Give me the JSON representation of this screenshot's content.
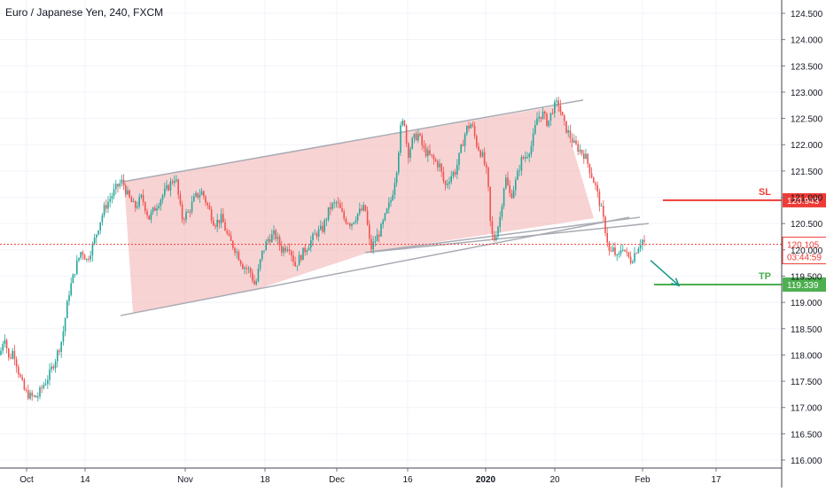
{
  "chart_title": "Euro / Japanese Yen, 240, FXCM",
  "colors": {
    "up": "#26a69a",
    "down": "#ef5350",
    "channel_fill": "#f4b6b6",
    "channel_line": "#a8abb3",
    "sl": "#ef3b36",
    "tp": "#4caf50",
    "arrow": "#1e9a8c",
    "price_line": "#ef3b36"
  },
  "chart_data": {
    "type": "candlestick",
    "title": "Euro / Japanese Yen, 240, FXCM",
    "ylim": [
      115.9,
      124.7
    ],
    "x_ticks": [
      "Oct",
      "14",
      "Nov",
      "18",
      "Dec",
      "16",
      "2020",
      "20",
      "Feb",
      "17"
    ],
    "y_ticks": [
      "124.500",
      "124.000",
      "123.500",
      "123.000",
      "122.500",
      "122.000",
      "121.500",
      "121.000",
      "120.500",
      "120.000",
      "119.500",
      "119.000",
      "118.500",
      "118.000",
      "117.500",
      "117.000",
      "116.500",
      "116.000"
    ],
    "price_path": [
      [
        0,
        118.0
      ],
      [
        5,
        118.4
      ],
      [
        10,
        117.9
      ],
      [
        15,
        118.1
      ],
      [
        22,
        117.6
      ],
      [
        28,
        117.3
      ],
      [
        35,
        117.2
      ],
      [
        42,
        117.2
      ],
      [
        48,
        117.4
      ],
      [
        55,
        117.6
      ],
      [
        62,
        117.9
      ],
      [
        70,
        118.3
      ],
      [
        78,
        119.2
      ],
      [
        86,
        119.7
      ],
      [
        92,
        120.0
      ],
      [
        98,
        119.8
      ],
      [
        105,
        120.1
      ],
      [
        112,
        120.5
      ],
      [
        118,
        120.8
      ],
      [
        125,
        121.0
      ],
      [
        132,
        121.2
      ],
      [
        138,
        121.3
      ],
      [
        145,
        121.0
      ],
      [
        152,
        120.8
      ],
      [
        160,
        121.0
      ],
      [
        168,
        120.6
      ],
      [
        175,
        120.8
      ],
      [
        182,
        121.0
      ],
      [
        190,
        121.2
      ],
      [
        198,
        121.4
      ],
      [
        205,
        120.6
      ],
      [
        212,
        120.7
      ],
      [
        220,
        121.0
      ],
      [
        228,
        121.1
      ],
      [
        235,
        120.8
      ],
      [
        242,
        120.5
      ],
      [
        250,
        120.6
      ],
      [
        258,
        120.2
      ],
      [
        266,
        120.0
      ],
      [
        274,
        119.7
      ],
      [
        282,
        119.6
      ],
      [
        288,
        119.3
      ],
      [
        295,
        119.9
      ],
      [
        302,
        120.2
      ],
      [
        310,
        120.3
      ],
      [
        318,
        120.0
      ],
      [
        326,
        120.1
      ],
      [
        333,
        119.7
      ],
      [
        340,
        119.9
      ],
      [
        348,
        120.1
      ],
      [
        356,
        120.3
      ],
      [
        364,
        120.4
      ],
      [
        372,
        120.8
      ],
      [
        380,
        120.9
      ],
      [
        388,
        120.6
      ],
      [
        396,
        120.5
      ],
      [
        404,
        120.7
      ],
      [
        412,
        120.8
      ],
      [
        418,
        120.0
      ],
      [
        424,
        120.2
      ],
      [
        430,
        120.4
      ],
      [
        436,
        120.7
      ],
      [
        442,
        121.0
      ],
      [
        448,
        121.6
      ],
      [
        452,
        122.3
      ],
      [
        456,
        122.5
      ],
      [
        460,
        121.8
      ],
      [
        466,
        122.1
      ],
      [
        472,
        122.2
      ],
      [
        478,
        121.9
      ],
      [
        484,
        121.8
      ],
      [
        490,
        121.7
      ],
      [
        496,
        121.6
      ],
      [
        502,
        121.2
      ],
      [
        508,
        121.4
      ],
      [
        514,
        121.5
      ],
      [
        520,
        121.9
      ],
      [
        526,
        122.3
      ],
      [
        532,
        122.4
      ],
      [
        538,
        122.0
      ],
      [
        544,
        121.8
      ],
      [
        550,
        121.4
      ],
      [
        554,
        120.3
      ],
      [
        558,
        120.2
      ],
      [
        564,
        120.6
      ],
      [
        570,
        121.4
      ],
      [
        576,
        121.0
      ],
      [
        582,
        121.3
      ],
      [
        588,
        121.7
      ],
      [
        594,
        121.8
      ],
      [
        600,
        122.0
      ],
      [
        606,
        122.5
      ],
      [
        612,
        122.6
      ],
      [
        618,
        122.4
      ],
      [
        624,
        122.7
      ],
      [
        630,
        122.8
      ],
      [
        636,
        122.4
      ],
      [
        642,
        122.2
      ],
      [
        648,
        122.0
      ],
      [
        654,
        121.9
      ],
      [
        660,
        121.8
      ],
      [
        666,
        121.5
      ],
      [
        672,
        121.2
      ],
      [
        678,
        120.8
      ],
      [
        684,
        120.3
      ],
      [
        688,
        119.9
      ],
      [
        692,
        120.0
      ],
      [
        697,
        119.8
      ],
      [
        702,
        120.1
      ],
      [
        707,
        119.9
      ],
      [
        712,
        119.8
      ],
      [
        718,
        120.0
      ],
      [
        724,
        120.2
      ],
      [
        729,
        120.1
      ]
    ],
    "channel": {
      "upper": [
        [
          140,
          121.3
        ],
        [
          658,
          122.85
        ]
      ],
      "lower": [
        [
          136,
          118.75
        ],
        [
          710,
          120.62
        ]
      ],
      "fill": [
        [
          140,
          121.3
        ],
        [
          632,
          122.75
        ],
        [
          670,
          120.6
        ],
        [
          416,
          119.95
        ],
        [
          290,
          119.25
        ],
        [
          150,
          118.8
        ]
      ]
    },
    "support_lines": [
      [
        [
          412,
          119.95
        ],
        [
          722,
          120.62
        ]
      ],
      [
        [
          414,
          119.95
        ],
        [
          732,
          120.5
        ]
      ]
    ],
    "current_price": {
      "value": 120.105,
      "label": "120.105",
      "countdown": "03:44:59"
    },
    "levels": [
      {
        "name": "SL",
        "label": "SL",
        "value": 120.943,
        "value_label": "120.943",
        "x_start": 748
      },
      {
        "name": "TP",
        "label": "TP",
        "value": 119.339,
        "value_label": "119.339",
        "x_start": 738
      }
    ],
    "arrow": {
      "from": [
        734,
        119.8
      ],
      "to": [
        766,
        119.32
      ]
    }
  }
}
